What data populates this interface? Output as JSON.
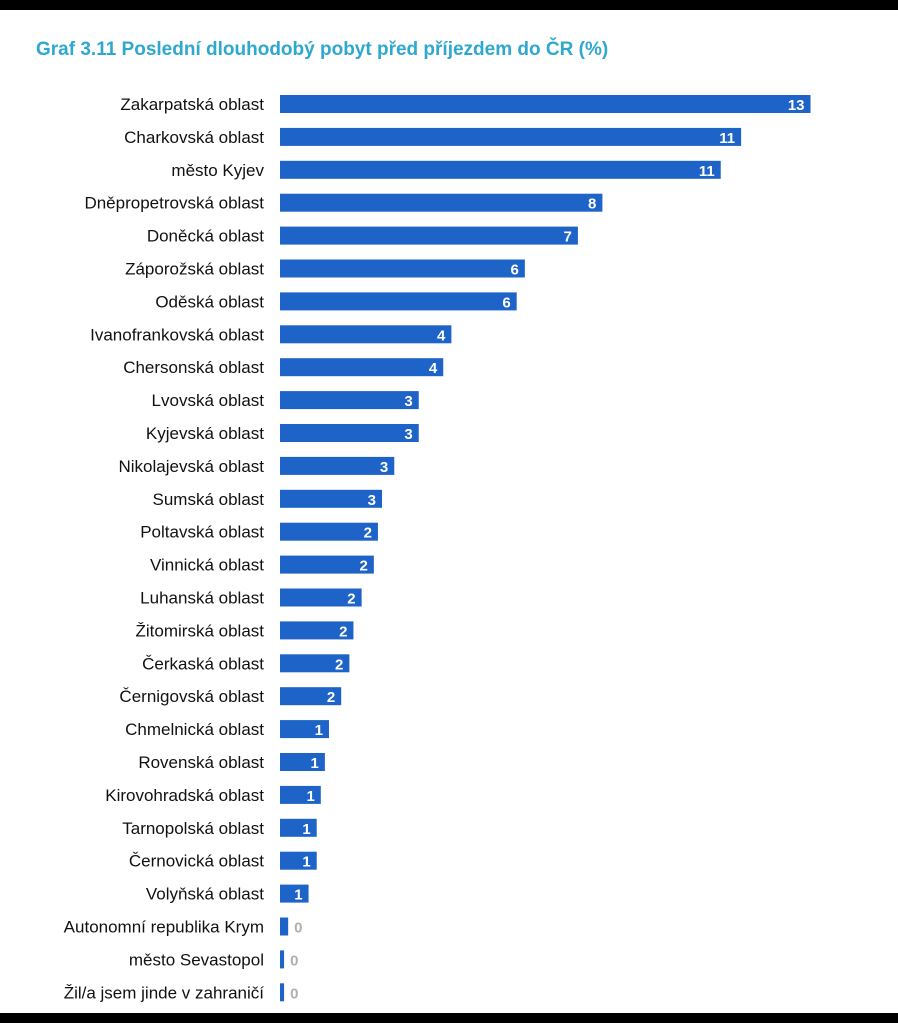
{
  "chart_data": {
    "type": "bar",
    "orientation": "horizontal",
    "title": "Graf 3.11 Poslední dlouhodobý pobyt před příjezdem do ČR (%)",
    "xlabel": "",
    "ylabel": "",
    "grid": false,
    "legend": "none",
    "bar_color": "#1e64c8",
    "title_color": "#2fa8cf",
    "categories": [
      "Zakarpatská oblast",
      "Charkovská oblast",
      "město Kyjev",
      "Dněpropetrovská oblast",
      "Doněcká oblast",
      "Záporožská oblast",
      "Oděská oblast",
      "Ivanofrankovská oblast",
      "Chersonská oblast",
      "Lvovská oblast",
      "Kyjevská oblast",
      "Nikolajevská oblast",
      "Sumská oblast",
      "Poltavská oblast",
      "Vinnická oblast",
      "Luhanská oblast",
      "Žitomirská oblast",
      "Čerkaská oblast",
      "Černigovská oblast",
      "Chmelnická oblast",
      "Rovenská oblast",
      "Kirovohradská oblast",
      "Tarnopolská oblast",
      "Černovická oblast",
      "Volyňská oblast",
      "Autonomní republika Krym",
      "město Sevastopol",
      "Žil/a jsem jinde v zahraničí"
    ],
    "values": [
      13.0,
      11.3,
      10.8,
      7.9,
      7.3,
      6.0,
      5.8,
      4.2,
      4.0,
      3.4,
      3.4,
      2.8,
      2.5,
      2.4,
      2.3,
      2.0,
      1.8,
      1.7,
      1.5,
      1.2,
      1.1,
      1.0,
      0.9,
      0.9,
      0.7,
      0.2,
      0.1,
      0.1
    ],
    "value_labels": [
      "13",
      "11",
      "11",
      "8",
      "7",
      "6",
      "6",
      "4",
      "4",
      "3",
      "3",
      "3",
      "3",
      "2",
      "2",
      "2",
      "2",
      "2",
      "2",
      "1",
      "1",
      "1",
      "1",
      "1",
      "1",
      "0",
      "0",
      "0"
    ],
    "xlim": [
      0,
      13.6
    ]
  }
}
